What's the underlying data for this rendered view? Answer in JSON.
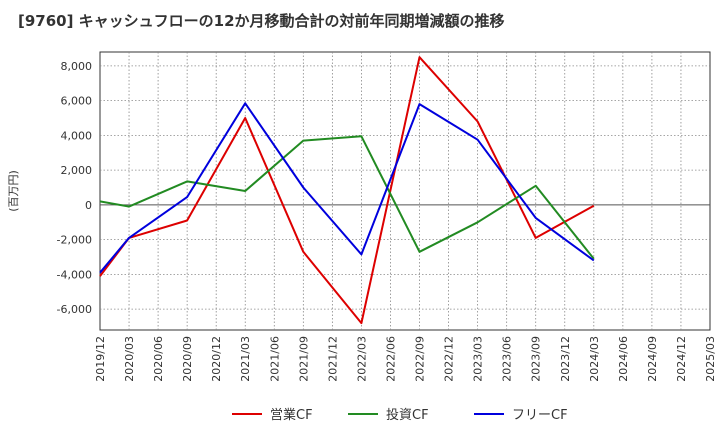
{
  "title": "[9760]  キャッシュフローの12か月移動合計の対前年同期増減額の推移",
  "chart_data": {
    "type": "line",
    "ylabel": "(百万円)",
    "ylim": [
      -7200,
      8800
    ],
    "yticks": [
      8000,
      6000,
      4000,
      2000,
      0,
      -2000,
      -4000,
      -6000
    ],
    "ytick_labels": [
      "8,000",
      "6,000",
      "4,000",
      "2,000",
      "0",
      "-2,000",
      "-4,000",
      "-6,000"
    ],
    "categories": [
      "2019/12",
      "2020/03",
      "2020/06",
      "2020/09",
      "2020/12",
      "2021/03",
      "2021/06",
      "2021/09",
      "2021/12",
      "2022/03",
      "2022/06",
      "2022/09",
      "2022/12",
      "2023/03",
      "2023/06",
      "2023/09",
      "2023/12",
      "2024/03",
      "2024/06",
      "2024/09",
      "2024/12",
      "2025/03"
    ],
    "grid": true,
    "legend_position": "bottom",
    "series": [
      {
        "name": "営業CF",
        "color": "#dd0000",
        "values": [
          -4100,
          -1900,
          null,
          -900,
          null,
          5000,
          null,
          -2700,
          null,
          -6800,
          null,
          8500,
          null,
          4800,
          null,
          -1900,
          null,
          -50,
          null,
          null,
          null,
          null
        ]
      },
      {
        "name": "投資CF",
        "color": "#228b22",
        "values": [
          200,
          -100,
          null,
          1350,
          null,
          800,
          null,
          3700,
          null,
          3950,
          null,
          -2700,
          null,
          -1000,
          null,
          1100,
          null,
          -3100,
          null,
          null,
          null,
          null
        ]
      },
      {
        "name": "フリーCF",
        "color": "#0000dd",
        "values": [
          -3900,
          -1900,
          null,
          450,
          null,
          5850,
          null,
          1000,
          null,
          -2850,
          null,
          5800,
          null,
          3750,
          null,
          -750,
          null,
          -3200,
          null,
          null,
          null,
          null
        ]
      }
    ]
  }
}
